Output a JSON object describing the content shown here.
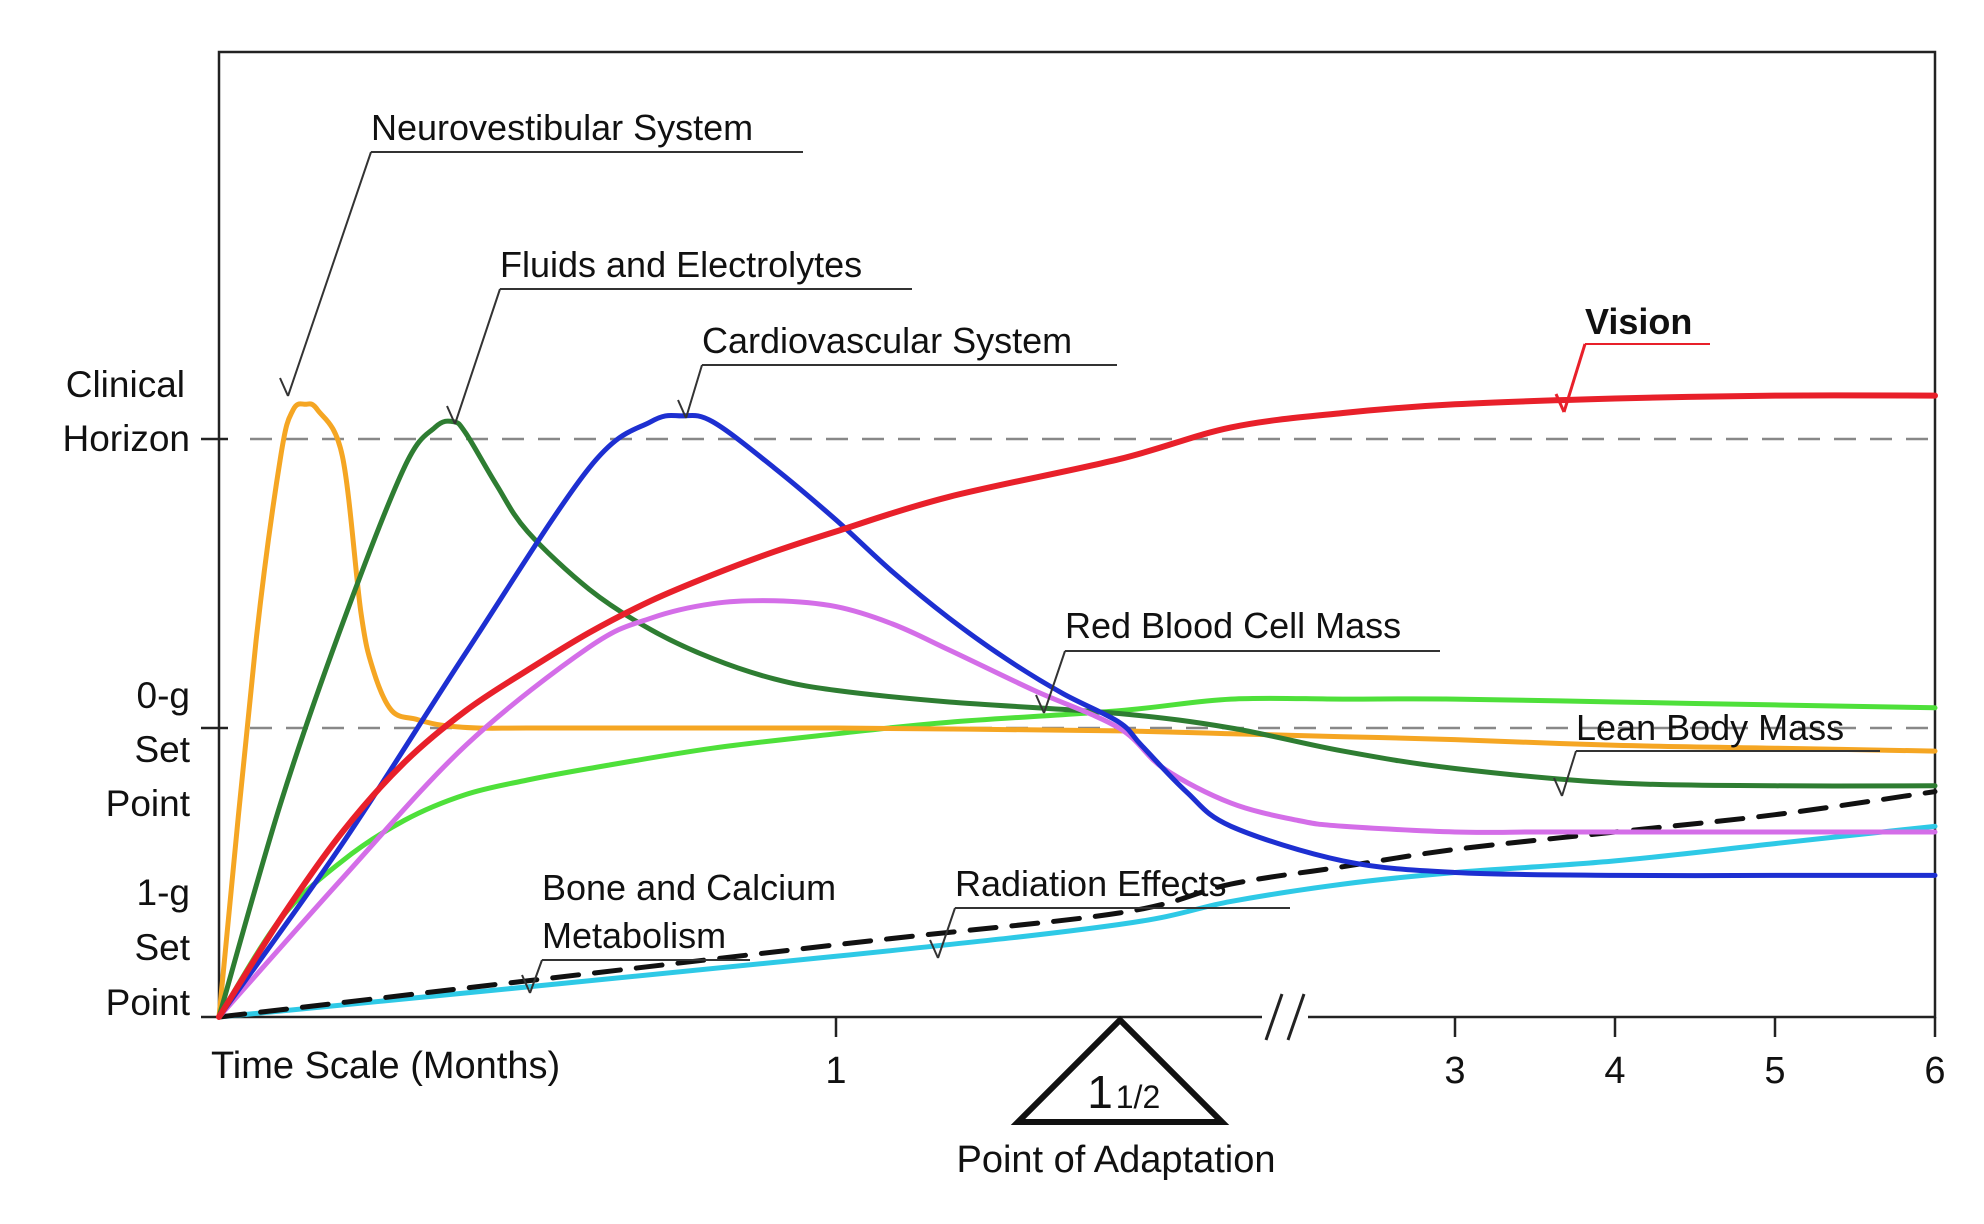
{
  "chart_data": {
    "type": "line",
    "title": "",
    "xlabel": "Time Scale (Months)",
    "ylabel": "",
    "x_ticks": [
      "1",
      "3",
      "4",
      "5",
      "6"
    ],
    "x_break_marker": "//",
    "y_levels": [
      {
        "key": "clinical",
        "lines": [
          "Clinical",
          "Horizon"
        ],
        "value": 1.0
      },
      {
        "key": "zero_g",
        "lines": [
          "0-g",
          "Set",
          "Point"
        ],
        "value": 0.5
      },
      {
        "key": "one_g",
        "lines": [
          "1-g",
          "Set",
          "Point"
        ],
        "value": 0.0
      }
    ],
    "adaptation": {
      "whole": "1",
      "fraction": "1/2",
      "label": "Point of Adaptation",
      "x": 1.5
    },
    "series": [
      {
        "name": "Neurovestibular System",
        "color": "#f5a623",
        "width": 5,
        "x": [
          0,
          0.06,
          0.1,
          0.12,
          0.14,
          0.16,
          0.2,
          0.23,
          0.25,
          0.28,
          0.32,
          0.36,
          0.42,
          0.5,
          0.7,
          1.0,
          1.5,
          2.0,
          2.5,
          3,
          4,
          5,
          6
        ],
        "y": [
          0,
          0.65,
          0.97,
          1.05,
          1.06,
          1.05,
          0.97,
          0.7,
          0.6,
          0.53,
          0.515,
          0.505,
          0.5,
          0.5,
          0.5,
          0.5,
          0.495,
          0.49,
          0.485,
          0.48,
          0.47,
          0.465,
          0.46
        ]
      },
      {
        "name": "Fluids and Electrolytes",
        "color": "#2e7d32",
        "width": 5,
        "x": [
          0,
          0.1,
          0.2,
          0.3,
          0.35,
          0.38,
          0.4,
          0.45,
          0.5,
          0.6,
          0.7,
          0.8,
          0.9,
          1.0,
          1.2,
          1.5,
          2.0,
          2.5,
          3,
          4,
          5,
          6
        ],
        "y": [
          0,
          0.37,
          0.68,
          0.95,
          1.02,
          1.03,
          1.01,
          0.92,
          0.84,
          0.74,
          0.67,
          0.62,
          0.585,
          0.565,
          0.545,
          0.525,
          0.5,
          0.46,
          0.43,
          0.405,
          0.4,
          0.4
        ]
      },
      {
        "name": "Cardiovascular System",
        "color": "#1d2fd1",
        "width": 5,
        "x": [
          0,
          0.2,
          0.4,
          0.6,
          0.7,
          0.75,
          0.8,
          0.9,
          1.0,
          1.1,
          1.2,
          1.3,
          1.4,
          1.5,
          1.6,
          1.8,
          2.0,
          2.5,
          3,
          4,
          5,
          6
        ],
        "y": [
          0,
          0.3,
          0.63,
          0.95,
          1.03,
          1.04,
          1.03,
          0.95,
          0.86,
          0.77,
          0.69,
          0.62,
          0.56,
          0.51,
          0.47,
          0.39,
          0.33,
          0.27,
          0.25,
          0.245,
          0.245,
          0.245
        ]
      },
      {
        "name": "Vision",
        "color": "#e8202a",
        "width": 6,
        "x": [
          0,
          0.1,
          0.2,
          0.3,
          0.4,
          0.5,
          0.6,
          0.7,
          0.8,
          0.9,
          1.0,
          1.2,
          1.5,
          2.0,
          2.5,
          3,
          4,
          5,
          6
        ],
        "y": [
          0,
          0.17,
          0.32,
          0.44,
          0.53,
          0.6,
          0.665,
          0.72,
          0.765,
          0.805,
          0.84,
          0.9,
          0.965,
          1.02,
          1.045,
          1.06,
          1.07,
          1.075,
          1.075
        ]
      },
      {
        "name": "Red Blood Cell Mass",
        "color": "#d46ee8",
        "width": 5,
        "x": [
          0,
          0.2,
          0.4,
          0.6,
          0.7,
          0.8,
          0.9,
          1.0,
          1.1,
          1.2,
          1.35,
          1.5,
          1.7,
          2.0,
          2.3,
          2.5,
          3,
          3.5,
          4,
          5,
          6
        ],
        "y": [
          0,
          0.24,
          0.47,
          0.64,
          0.69,
          0.715,
          0.72,
          0.71,
          0.68,
          0.635,
          0.565,
          0.5,
          0.43,
          0.37,
          0.34,
          0.33,
          0.32,
          0.32,
          0.32,
          0.32,
          0.32
        ]
      },
      {
        "name": "Lean Body Mass",
        "color": "#4ee03a",
        "width": 5,
        "x": [
          0,
          0.1,
          0.2,
          0.3,
          0.4,
          0.5,
          0.6,
          0.8,
          1.0,
          1.2,
          1.5,
          2.0,
          2.5,
          3,
          4,
          5,
          6
        ],
        "y": [
          0,
          0.17,
          0.27,
          0.34,
          0.385,
          0.41,
          0.43,
          0.465,
          0.49,
          0.51,
          0.53,
          0.55,
          0.55,
          0.55,
          0.545,
          0.54,
          0.535
        ]
      },
      {
        "name": "Bone and Calcium Metabolism",
        "color": "#2ec9e6",
        "width": 5,
        "x": [
          0,
          1.0,
          1.5,
          2.0,
          2.5,
          3,
          4,
          5,
          6
        ],
        "y": [
          0,
          0.105,
          0.16,
          0.2,
          0.23,
          0.25,
          0.27,
          0.3,
          0.33
        ]
      },
      {
        "name": "Radiation Effects",
        "color": "#111111",
        "width": 5,
        "dash": "26 16",
        "x": [
          0,
          1.0,
          1.5,
          2.0,
          2.5,
          3,
          4,
          5,
          6
        ],
        "y": [
          0,
          0.125,
          0.18,
          0.23,
          0.26,
          0.29,
          0.32,
          0.35,
          0.39
        ]
      }
    ],
    "annotations": [
      {
        "text": "Neurovestibular System",
        "series": 0
      },
      {
        "text": "Fluids and Electrolytes",
        "series": 1
      },
      {
        "text": "Cardiovascular System",
        "series": 2
      },
      {
        "text": "Vision",
        "series": 3
      },
      {
        "text": "Red Blood Cell Mass",
        "series": 4
      },
      {
        "text": "Lean Body Mass",
        "series": 5
      },
      {
        "text_lines": [
          "Bone and Calcium",
          "Metabolism"
        ],
        "series": 6
      },
      {
        "text": "Radiation Effects",
        "series": 7
      }
    ],
    "colors": {
      "reference_line": "#888888",
      "axis": "#222222",
      "vision_label": "#e8202a"
    }
  }
}
